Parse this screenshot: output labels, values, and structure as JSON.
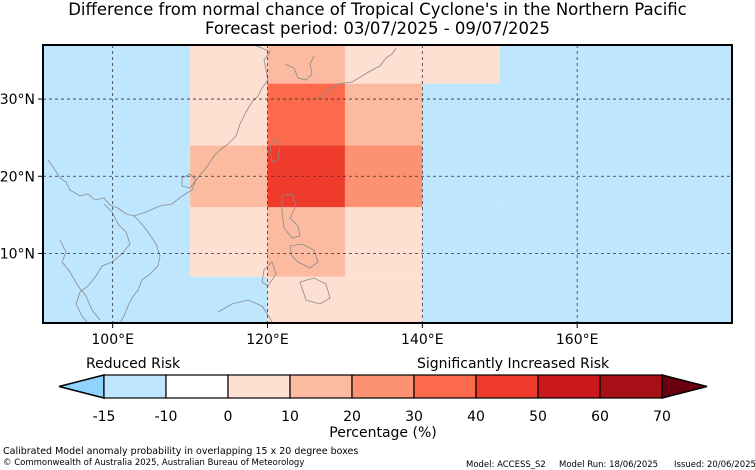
{
  "title_line1": "Difference from normal chance of Tropical Cyclone's in the Northern Pacific",
  "title_line2": "Forecast period: 03/07/2025 - 09/07/2025",
  "map": {
    "lon_ticks": [
      {
        "value": 100,
        "label": "100°E"
      },
      {
        "value": 120,
        "label": "120°E"
      },
      {
        "value": 140,
        "label": "140°E"
      },
      {
        "value": 160,
        "label": "160°E"
      }
    ],
    "lat_ticks": [
      {
        "value": 30,
        "label": "30°N"
      },
      {
        "value": 20,
        "label": "20°N"
      },
      {
        "value": 10,
        "label": "10°N"
      }
    ],
    "cells": [
      {
        "lon": [
          90,
          110
        ],
        "lat": [
          -5,
          45
        ],
        "value": -15
      },
      {
        "lon": [
          150,
          180
        ],
        "lat": [
          -5,
          45
        ],
        "value": -15
      },
      {
        "lon": [
          140,
          150
        ],
        "lat": [
          -5,
          16
        ],
        "value": -15
      },
      {
        "lon": [
          110,
          120
        ],
        "lat": [
          -5,
          7
        ],
        "value": -12
      },
      {
        "lon": [
          150,
          160
        ],
        "lat": [
          32,
          45
        ],
        "value": -12
      },
      {
        "lon": [
          140,
          150
        ],
        "lat": [
          16,
          32
        ],
        "value": -12
      },
      {
        "lon": [
          140,
          150
        ],
        "lat": [
          32,
          45
        ],
        "value": 0
      },
      {
        "lon": [
          120,
          140
        ],
        "lat": [
          -5,
          7
        ],
        "value": 0
      },
      {
        "lon": [
          110,
          120
        ],
        "lat": [
          7,
          16
        ],
        "value": 5
      },
      {
        "lon": [
          110,
          120
        ],
        "lat": [
          24,
          45
        ],
        "value": 5
      },
      {
        "lon": [
          130,
          140
        ],
        "lat": [
          7,
          16
        ],
        "value": 5
      },
      {
        "lon": [
          130,
          140
        ],
        "lat": [
          32,
          45
        ],
        "value": 5
      },
      {
        "lon": [
          110,
          120
        ],
        "lat": [
          16,
          24
        ],
        "value": 15
      },
      {
        "lon": [
          120,
          130
        ],
        "lat": [
          7,
          16
        ],
        "value": 15
      },
      {
        "lon": [
          120,
          130
        ],
        "lat": [
          32,
          45
        ],
        "value": 15
      },
      {
        "lon": [
          130,
          140
        ],
        "lat": [
          24,
          32
        ],
        "value": 15
      },
      {
        "lon": [
          130,
          140
        ],
        "lat": [
          16,
          24
        ],
        "value": 25
      },
      {
        "lon": [
          120,
          130
        ],
        "lat": [
          24,
          32
        ],
        "value": 35
      },
      {
        "lon": [
          120,
          130
        ],
        "lat": [
          16,
          24
        ],
        "value": 45
      }
    ]
  },
  "colorbar": {
    "reduced_label": "Reduced Risk",
    "increased_label": "Significantly Increased Risk",
    "xlabel": "Percentage (%)",
    "ticks": [
      "-15",
      "-10",
      "0",
      "10",
      "20",
      "30",
      "40",
      "50",
      "60",
      "70"
    ],
    "under_color": "#8fd3fe",
    "over_color": "#6b0010",
    "colors": [
      "#bfe6ff",
      "#ffffff",
      "#fee0d2",
      "#fcbba1",
      "#fc9272",
      "#fb6a4a",
      "#ef3b2c",
      "#cb181d",
      "#a50f15"
    ]
  },
  "footer": {
    "note": "Calibrated Model anomaly probability in overlapping 15 x 20 degree boxes",
    "copyright": "© Commonwealth of Australia 2025, Australian Bureau of Meteorology",
    "model": "Model: ACCESS_S2",
    "model_run": "Model Run: 18/06/2025",
    "issued": "Issued: 20/06/2025"
  }
}
